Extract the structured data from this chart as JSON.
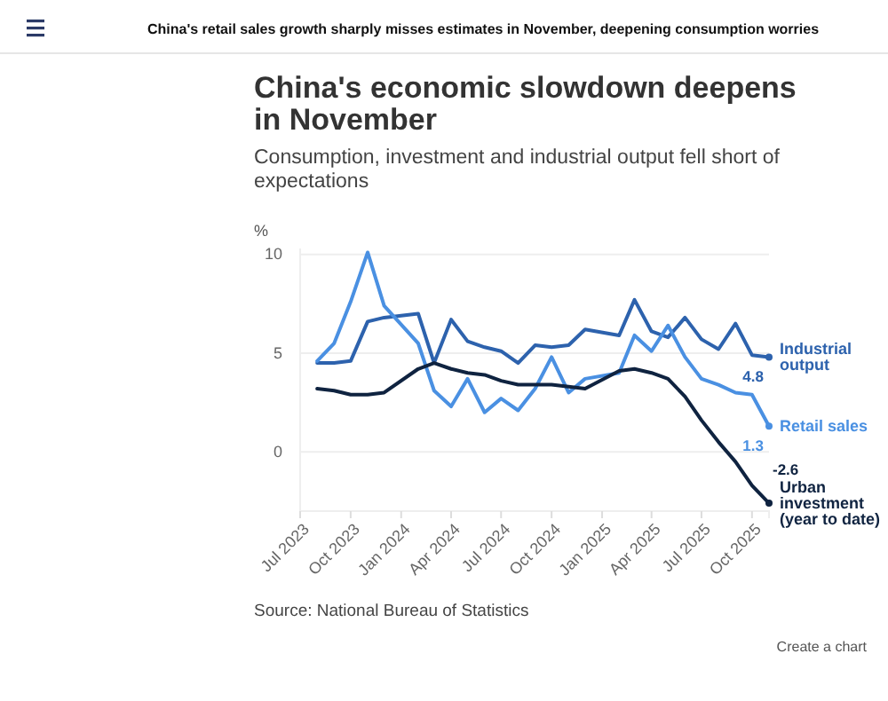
{
  "chart_data": {
    "type": "line",
    "title": "China's economic slowdown deepens in November",
    "subtitle": "Consumption, investment and industrial output fell short of expectations",
    "ylabel": "%",
    "annotations": [
      "China's retail sales growth sharply misses estimates in November, deepening consumption worries",
      "Source: National Bureau of Statistics",
      "Create a chart"
    ],
    "x": [
      "2023-08",
      "2023-09",
      "2023-10",
      "2023-11",
      "2023-12",
      "2024-02",
      "2024-03",
      "2024-04",
      "2024-05",
      "2024-06",
      "2024-07",
      "2024-08",
      "2024-09",
      "2024-10",
      "2024-11",
      "2024-12",
      "2025-02",
      "2025-03",
      "2025-04",
      "2025-05",
      "2025-06",
      "2025-07",
      "2025-08",
      "2025-09",
      "2025-10",
      "2025-11"
    ],
    "series": [
      {
        "name": "Industrial output",
        "color": "#2d62ad",
        "values": [
          4.5,
          4.5,
          4.6,
          6.6,
          6.8,
          7.0,
          4.5,
          6.7,
          5.6,
          5.3,
          5.1,
          4.5,
          5.4,
          5.3,
          5.4,
          6.2,
          5.9,
          7.7,
          6.1,
          5.8,
          6.8,
          5.7,
          5.2,
          6.5,
          4.9,
          4.8
        ],
        "value_labels": [
          null,
          null,
          null,
          null,
          null,
          null,
          null,
          null,
          null,
          null,
          null,
          null,
          null,
          null,
          null,
          null,
          null,
          null,
          null,
          null,
          null,
          null,
          null,
          null,
          null,
          "4.8"
        ]
      },
      {
        "name": "Retail sales",
        "color": "#4a90e2",
        "values": [
          4.6,
          5.5,
          7.6,
          10.1,
          7.4,
          5.5,
          3.1,
          2.3,
          3.7,
          2.0,
          2.7,
          2.1,
          3.2,
          4.8,
          3.0,
          3.7,
          4.0,
          5.9,
          5.1,
          6.4,
          4.8,
          3.7,
          3.4,
          3.0,
          2.9,
          1.3
        ],
        "value_labels": [
          null,
          null,
          null,
          null,
          null,
          null,
          null,
          null,
          null,
          null,
          null,
          null,
          null,
          null,
          null,
          null,
          null,
          null,
          null,
          null,
          null,
          null,
          null,
          null,
          null,
          "1.3"
        ]
      },
      {
        "name": "Urban investment (year to date)",
        "color": "#0f2340",
        "values": [
          3.2,
          3.1,
          2.9,
          2.9,
          3.0,
          4.2,
          4.5,
          4.2,
          4.0,
          3.9,
          3.6,
          3.4,
          3.4,
          3.4,
          3.3,
          3.2,
          4.1,
          4.2,
          4.0,
          3.7,
          2.8,
          1.6,
          0.5,
          -0.5,
          -1.7,
          -2.6
        ],
        "value_labels": [
          null,
          null,
          null,
          null,
          null,
          null,
          null,
          null,
          null,
          null,
          null,
          null,
          null,
          null,
          null,
          null,
          null,
          null,
          null,
          null,
          null,
          null,
          null,
          null,
          null,
          "-2.6"
        ]
      }
    ],
    "xlim": [
      "2023-07",
      "2025-11"
    ],
    "xticks": [
      {
        "value": "2023-07",
        "label": "Jul 2023"
      },
      {
        "value": "2023-10",
        "label": "Oct 2023"
      },
      {
        "value": "2024-01",
        "label": "Jan 2024"
      },
      {
        "value": "2024-04",
        "label": "Apr 2024"
      },
      {
        "value": "2024-07",
        "label": "Jul 2024"
      },
      {
        "value": "2024-10",
        "label": "Oct 2024"
      },
      {
        "value": "2025-01",
        "label": "Jan 2025"
      },
      {
        "value": "2025-04",
        "label": "Apr 2025"
      },
      {
        "value": "2025-07",
        "label": "Jul 2025"
      },
      {
        "value": "2025-10",
        "label": "Oct 2025"
      }
    ],
    "ylim": [
      -3,
      10.3
    ],
    "yticks": [
      0,
      5,
      10
    ],
    "grid": "y",
    "marker": "none",
    "line_style": "solid"
  }
}
